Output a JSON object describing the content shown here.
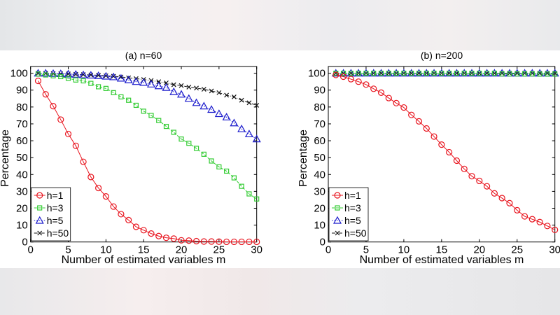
{
  "chart_data": [
    {
      "type": "line",
      "title": "(a) n=60",
      "xlabel": "Number of estimated variables m",
      "ylabel": "Percentage",
      "xlim": [
        0,
        30
      ],
      "ylim": [
        0,
        104
      ],
      "xticks": [
        0,
        5,
        10,
        15,
        20,
        25,
        30
      ],
      "yticks": [
        0,
        10,
        20,
        30,
        40,
        50,
        60,
        70,
        80,
        90,
        100
      ],
      "grid": false,
      "legend_position": "bottom-left",
      "x": [
        1,
        2,
        3,
        4,
        5,
        6,
        7,
        8,
        9,
        10,
        11,
        12,
        13,
        14,
        15,
        16,
        17,
        18,
        19,
        20,
        21,
        22,
        23,
        24,
        25,
        26,
        27,
        28,
        29,
        30
      ],
      "series": [
        {
          "name": "h=1",
          "color": "#e8141e",
          "marker": "circle",
          "line": "solid",
          "values": [
            95.5,
            87.5,
            80.5,
            72.5,
            64,
            57,
            47.5,
            38.5,
            32,
            27,
            21,
            16.5,
            13,
            9,
            7,
            5,
            3.5,
            2.5,
            2,
            1,
            0.8,
            0.5,
            0.3,
            0.3,
            0.2,
            0.1,
            0.1,
            0.1,
            0.1,
            0.1
          ]
        },
        {
          "name": "h=3",
          "color": "#33cc33",
          "marker": "square",
          "line": "dashed",
          "values": [
            99.5,
            99,
            98.5,
            98,
            97,
            96,
            95.5,
            94,
            92,
            91,
            88.5,
            86,
            84,
            81,
            77.5,
            75,
            72,
            68.5,
            65,
            61,
            58.5,
            55.5,
            52,
            48,
            44.5,
            42,
            38,
            33,
            28.5,
            25.5
          ]
        },
        {
          "name": "h=5",
          "color": "#1a1acc",
          "marker": "triangle",
          "line": "dotted",
          "values": [
            100,
            100,
            99.8,
            99.7,
            99.5,
            99.3,
            99,
            98.8,
            98.5,
            98.2,
            97.8,
            97,
            96,
            95,
            94.5,
            93.5,
            92.5,
            91.5,
            89,
            87.5,
            85,
            82.5,
            80.5,
            78.5,
            76,
            74,
            70.5,
            67,
            64,
            61
          ]
        },
        {
          "name": "h=50",
          "color": "#111111",
          "marker": "x",
          "line": "dashdot",
          "values": [
            100,
            100,
            99.8,
            99.7,
            99.6,
            99.4,
            99.2,
            99,
            98.8,
            98.5,
            98.2,
            97.8,
            97.3,
            96.8,
            96.3,
            95.7,
            95,
            94.3,
            93.2,
            92.7,
            91.8,
            91.2,
            90.5,
            89.5,
            88.5,
            87,
            86,
            84,
            82.5,
            81
          ]
        }
      ]
    },
    {
      "type": "line",
      "title": "(b) n=200",
      "xlabel": "Number of estimated variables m",
      "ylabel": "Percentage",
      "xlim": [
        0,
        30
      ],
      "ylim": [
        0,
        104
      ],
      "xticks": [
        0,
        5,
        10,
        15,
        20,
        25,
        30
      ],
      "yticks": [
        0,
        10,
        20,
        30,
        40,
        50,
        60,
        70,
        80,
        90,
        100
      ],
      "grid": false,
      "legend_position": "bottom-left",
      "x": [
        1,
        2,
        3,
        4,
        5,
        6,
        7,
        8,
        9,
        10,
        11,
        12,
        13,
        14,
        15,
        16,
        17,
        18,
        19,
        20,
        21,
        22,
        23,
        24,
        25,
        26,
        27,
        28,
        29,
        30
      ],
      "series": [
        {
          "name": "h=1",
          "color": "#e8141e",
          "marker": "circle",
          "line": "solid",
          "values": [
            99,
            98,
            96.5,
            95,
            93.3,
            90.8,
            88.5,
            85.3,
            82.3,
            79.7,
            75.3,
            71.5,
            67.3,
            62.5,
            57.7,
            53.2,
            48.2,
            43.3,
            39,
            36.2,
            33,
            28.8,
            26,
            23,
            18.8,
            15.2,
            13.5,
            11.8,
            9.5,
            7.2
          ]
        },
        {
          "name": "h=3",
          "color": "#33cc33",
          "marker": "square",
          "line": "dashed",
          "values": [
            100,
            100,
            100,
            100,
            100,
            100,
            100,
            100,
            100,
            100,
            100,
            100,
            100,
            100,
            100,
            100,
            100,
            100,
            100,
            100,
            100,
            100,
            99.6,
            99.6,
            99.6,
            99.6,
            99.6,
            99.5,
            99.5,
            99.5
          ]
        },
        {
          "name": "h=5",
          "color": "#1a1acc",
          "marker": "triangle",
          "line": "dotted",
          "values": [
            100,
            100,
            100,
            100,
            100,
            100,
            100,
            100,
            100,
            100,
            100,
            100,
            100,
            100,
            100,
            100,
            100,
            100,
            100,
            100,
            100,
            100,
            100,
            100,
            100,
            100,
            100,
            100,
            100,
            100
          ]
        },
        {
          "name": "h=50",
          "color": "#111111",
          "marker": "x",
          "line": "dashdot",
          "values": [
            100,
            100,
            100,
            100,
            100,
            100,
            100,
            100,
            100,
            100,
            100,
            100,
            100,
            100,
            100,
            100,
            100,
            100,
            100,
            100,
            100,
            100,
            100,
            100,
            100,
            100,
            100,
            100,
            100,
            100
          ]
        }
      ]
    }
  ]
}
